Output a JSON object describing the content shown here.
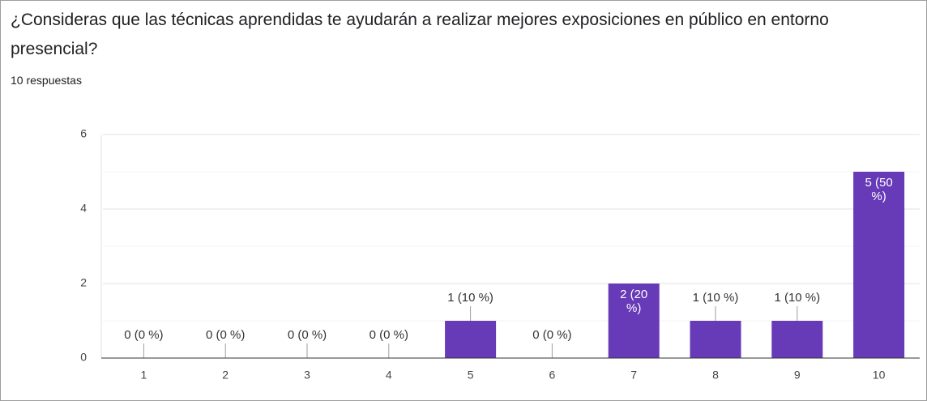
{
  "chart_data": {
    "type": "bar",
    "title": "¿Consideras que las técnicas aprendidas te ayudarán a realizar mejores exposiciones en público en entorno presencial?",
    "subtitle": "10 respuestas",
    "categories": [
      "1",
      "2",
      "3",
      "4",
      "5",
      "6",
      "7",
      "8",
      "9",
      "10"
    ],
    "values": [
      0,
      0,
      0,
      0,
      1,
      0,
      2,
      1,
      1,
      5
    ],
    "value_labels": [
      "0 (0 %)",
      "0 (0 %)",
      "0 (0 %)",
      "0 (0 %)",
      "1 (10 %)",
      "0 (0 %)",
      "2 (20 %)",
      "1 (10 %)",
      "1 (10 %)",
      "5 (50 %)"
    ],
    "color": "#673ab7",
    "ylim": [
      0,
      6
    ],
    "yticks": [
      0,
      2,
      4,
      6
    ],
    "minor_yticks": [
      1,
      3,
      5
    ],
    "grid": true
  }
}
